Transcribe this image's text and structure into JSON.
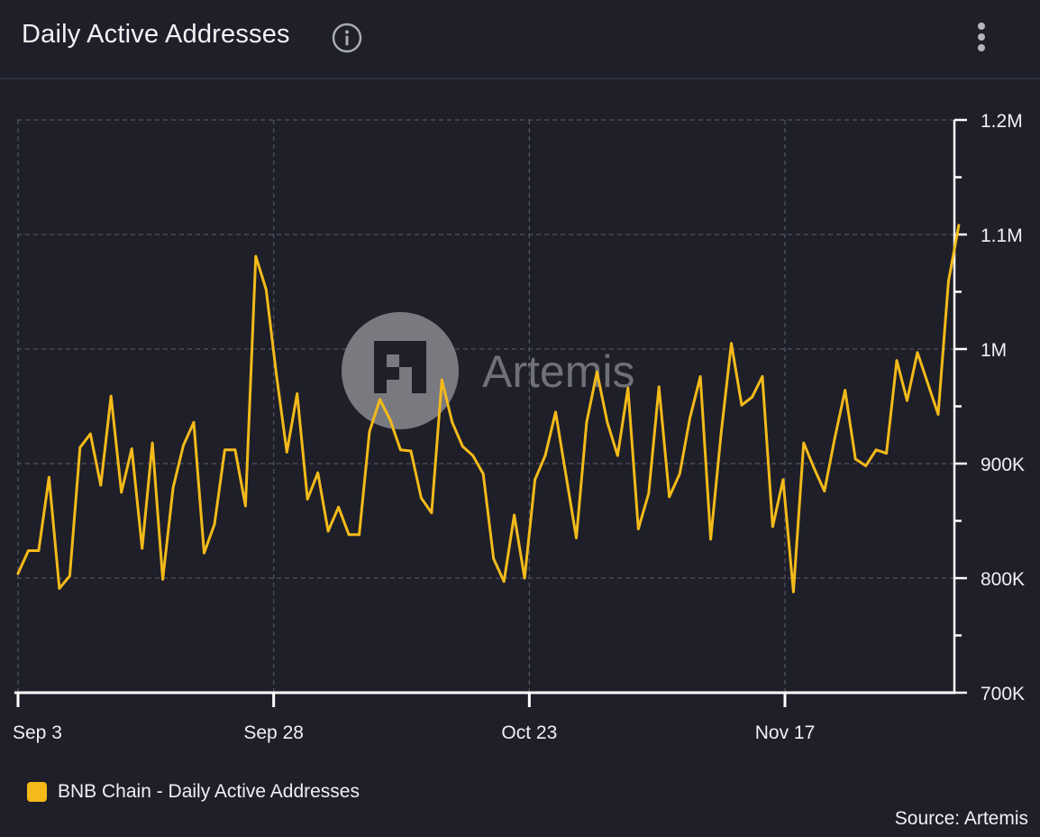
{
  "header": {
    "title": "Daily Active Addresses",
    "info_icon": "info-circle-icon",
    "menu_icon": "vertical-dots-icon"
  },
  "watermark": {
    "text": "Artemis",
    "logo_icon": "artemis-logo-icon"
  },
  "colors": {
    "background": "#1e1f29",
    "line": "#f3ba1a",
    "grid": "#50525e",
    "axis": "#ffffff",
    "watermark": "#8a8a90"
  },
  "legend": {
    "label": "BNB Chain - Daily Active Addresses"
  },
  "source": "Source: Artemis",
  "chart_data": {
    "type": "line",
    "title": "Daily Active Addresses",
    "xlabel": "",
    "ylabel": "",
    "ylim": [
      700000,
      1200000
    ],
    "y_ticks": [
      700000,
      800000,
      900000,
      1000000,
      1100000,
      1200000
    ],
    "y_tick_labels": [
      "700K",
      "800K",
      "900K",
      "1M",
      "1.1M",
      "1.2M"
    ],
    "x_tick_labels": [
      "Sep 3",
      "Sep 28",
      "Oct 23",
      "Nov 17"
    ],
    "x_tick_dates": [
      "2024-09-03",
      "2024-09-28",
      "2024-10-23",
      "2024-11-17"
    ],
    "grid": true,
    "legend_position": "bottom-left",
    "series": [
      {
        "name": "BNB Chain - Daily Active Addresses",
        "color": "#f3ba1a",
        "x_start": "2024-09-03",
        "x_end": "2024-12-04",
        "values": [
          804000,
          824000,
          824000,
          888000,
          791000,
          802000,
          914000,
          926000,
          881000,
          959000,
          875000,
          913000,
          826000,
          918000,
          799000,
          879000,
          916000,
          936000,
          822000,
          847000,
          912000,
          912000,
          863000,
          1081000,
          1052000,
          977000,
          910000,
          961000,
          869000,
          892000,
          841000,
          862000,
          838000,
          838000,
          928000,
          956000,
          938000,
          912000,
          911000,
          870000,
          857000,
          973000,
          936000,
          915000,
          907000,
          891000,
          817000,
          797000,
          855000,
          800000,
          886000,
          907000,
          945000,
          890000,
          835000,
          936000,
          980000,
          936000,
          907000,
          966000,
          843000,
          874000,
          967000,
          871000,
          891000,
          940000,
          976000,
          834000,
          926000,
          1005000,
          951000,
          958000,
          976000,
          845000,
          886000,
          788000,
          918000,
          896000,
          876000,
          922000,
          964000,
          904000,
          898000,
          912000,
          909000,
          990000,
          955000,
          997000,
          970000,
          943000,
          1059000,
          1108000
        ]
      }
    ]
  }
}
